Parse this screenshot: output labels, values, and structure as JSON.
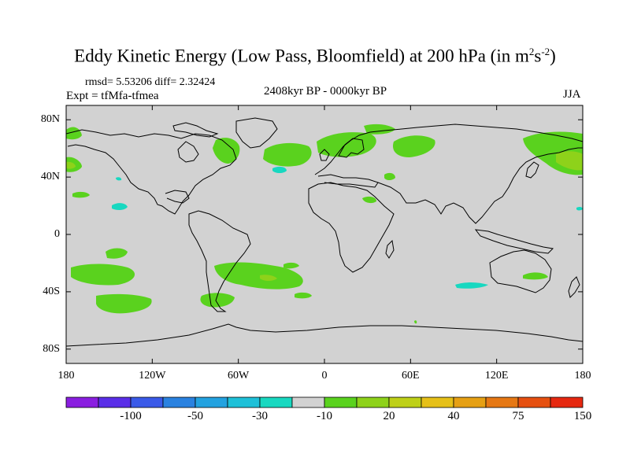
{
  "title": {
    "main": "Eddy Kinetic Energy (Low Pass, Bloomfield) at 200 hPa (in m",
    "unit_sup1": "2",
    "unit_mid": "s",
    "unit_sup2": "-2",
    "unit_end": ")"
  },
  "stats": "rmsd= 5.53206 diff= 2.32424",
  "experiment": "Expt = tfMfa-tfmea",
  "period": "2408kyr BP - 0000kyr BP",
  "season": "JJA",
  "y_axis": [
    {
      "label": "80N",
      "lat": 80
    },
    {
      "label": "40N",
      "lat": 40
    },
    {
      "label": "0",
      "lat": 0
    },
    {
      "label": "40S",
      "lat": -40
    },
    {
      "label": "80S",
      "lat": -80
    }
  ],
  "x_axis": [
    {
      "label": "180",
      "lon": -180
    },
    {
      "label": "120W",
      "lon": -120
    },
    {
      "label": "60W",
      "lon": -60
    },
    {
      "label": "0",
      "lon": 0
    },
    {
      "label": "60E",
      "lon": 60
    },
    {
      "label": "120E",
      "lon": 120
    },
    {
      "label": "180",
      "lon": 180
    }
  ],
  "colorbar": {
    "colors": [
      "#8a1ee0",
      "#5a2ee8",
      "#3a5ae8",
      "#2a82e0",
      "#23a2e0",
      "#1ec0d8",
      "#18d8c0",
      "#d2d2d2",
      "#5ad21e",
      "#8ed21a",
      "#bed018",
      "#e6c018",
      "#e6a014",
      "#e67814",
      "#e65010",
      "#e62810"
    ],
    "labels": [
      {
        "text": "-100",
        "after_index": 1
      },
      {
        "text": "-50",
        "after_index": 3
      },
      {
        "text": "-30",
        "after_index": 5
      },
      {
        "text": "-10",
        "after_index": 7
      },
      {
        "text": "20",
        "after_index": 9
      },
      {
        "text": "40",
        "after_index": 11
      },
      {
        "text": "75",
        "after_index": 13
      },
      {
        "text": "150",
        "after_index": 15
      }
    ]
  },
  "colors": {
    "background": "#d2d2d2",
    "positive": "#5ad21e",
    "positive_strong": "#8ed21a",
    "negative": "#18d8c0"
  }
}
